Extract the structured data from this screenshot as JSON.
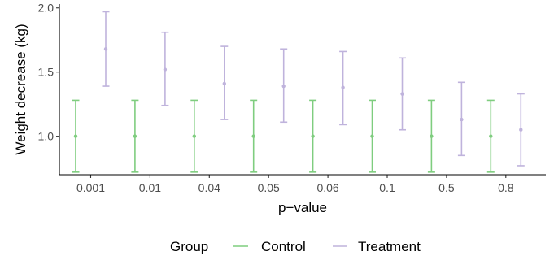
{
  "chart_data": {
    "type": "errorbar",
    "xlabel": "p−value",
    "ylabel": "Weight decrease (kg)",
    "categories": [
      "0.001",
      "0.01",
      "0.04",
      "0.05",
      "0.06",
      "0.1",
      "0.5",
      "0.8"
    ],
    "ylim": [
      0.7,
      2.03
    ],
    "yticks": [
      1.0,
      1.5,
      2.0
    ],
    "ytick_labels": [
      "1.0",
      "1.5",
      "2.0"
    ],
    "grid": false,
    "legend": {
      "title": "Group",
      "position": "bottom"
    },
    "series": [
      {
        "name": "Control",
        "color": "#7fcd7f",
        "values": [
          1.0,
          1.0,
          1.0,
          1.0,
          1.0,
          1.0,
          1.0,
          1.0
        ],
        "lower": [
          0.72,
          0.72,
          0.72,
          0.72,
          0.72,
          0.72,
          0.72,
          0.72
        ],
        "upper": [
          1.28,
          1.28,
          1.28,
          1.28,
          1.28,
          1.28,
          1.28,
          1.28
        ]
      },
      {
        "name": "Treatment",
        "color": "#bfb3dc",
        "values": [
          1.68,
          1.52,
          1.41,
          1.39,
          1.38,
          1.33,
          1.13,
          1.05
        ],
        "lower": [
          1.39,
          1.24,
          1.13,
          1.11,
          1.09,
          1.05,
          0.85,
          0.77
        ],
        "upper": [
          1.97,
          1.81,
          1.7,
          1.68,
          1.66,
          1.61,
          1.42,
          1.33
        ]
      }
    ]
  }
}
